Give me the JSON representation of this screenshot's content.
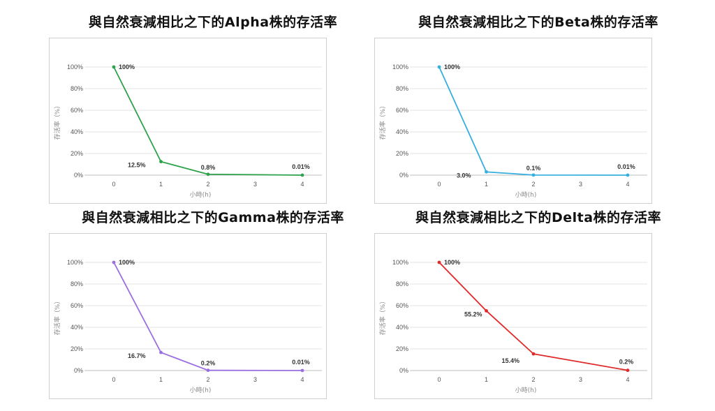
{
  "chart_data": [
    {
      "type": "line",
      "title": "與自然衰減相比之下的Alpha株的存活率",
      "xlabel": "小時(h)",
      "ylabel": "存活率（%）",
      "x": [
        0,
        1,
        2,
        3,
        4
      ],
      "y_ticks": [
        "0%",
        "20%",
        "40%",
        "60%",
        "80%",
        "100%"
      ],
      "ylim": [
        0,
        100
      ],
      "grid": true,
      "color": "#2ca24a",
      "series": [
        {
          "x": [
            0,
            1,
            2,
            4
          ],
          "values": [
            100,
            12.5,
            0.8,
            0.01
          ]
        }
      ],
      "data_labels": [
        "100%",
        "12.5%",
        "0.8%",
        "0.01%"
      ]
    },
    {
      "type": "line",
      "title": "與自然衰減相比之下的Beta株的存活率",
      "xlabel": "小時(h)",
      "ylabel": "存活率（%）",
      "x": [
        0,
        1,
        2,
        3,
        4
      ],
      "y_ticks": [
        "0%",
        "20%",
        "40%",
        "60%",
        "80%",
        "100%"
      ],
      "ylim": [
        0,
        100
      ],
      "grid": true,
      "color": "#35aee0",
      "series": [
        {
          "x": [
            0,
            1,
            2,
            4
          ],
          "values": [
            100,
            3.0,
            0.1,
            0.01
          ]
        }
      ],
      "data_labels": [
        "100%",
        "3.0%",
        "0.1%",
        "0.01%"
      ]
    },
    {
      "type": "line",
      "title": "與自然衰減相比之下的Gamma株的存活率",
      "xlabel": "小時(h)",
      "ylabel": "存活率（%）",
      "x": [
        0,
        1,
        2,
        3,
        4
      ],
      "y_ticks": [
        "0%",
        "20%",
        "40%",
        "60%",
        "80%",
        "100%"
      ],
      "ylim": [
        0,
        100
      ],
      "grid": true,
      "color": "#9a6fe0",
      "series": [
        {
          "x": [
            0,
            1,
            2,
            4
          ],
          "values": [
            100,
            16.7,
            0.2,
            0.01
          ]
        }
      ],
      "data_labels": [
        "100%",
        "16.7%",
        "0.2%",
        "0.01%"
      ]
    },
    {
      "type": "line",
      "title": "與自然衰減相比之下的Delta株的存活率",
      "xlabel": "小時(h)",
      "ylabel": "存活率（%）",
      "x": [
        0,
        1,
        2,
        3,
        4
      ],
      "y_ticks": [
        "0%",
        "20%",
        "40%",
        "60%",
        "80%",
        "100%"
      ],
      "ylim": [
        0,
        100
      ],
      "grid": true,
      "color": "#e02a2a",
      "series": [
        {
          "x": [
            0,
            1,
            2,
            4
          ],
          "values": [
            100,
            55.2,
            15.4,
            0.2
          ]
        }
      ],
      "data_labels": [
        "100%",
        "55.2%",
        "15.4%",
        "0.2%"
      ]
    }
  ]
}
